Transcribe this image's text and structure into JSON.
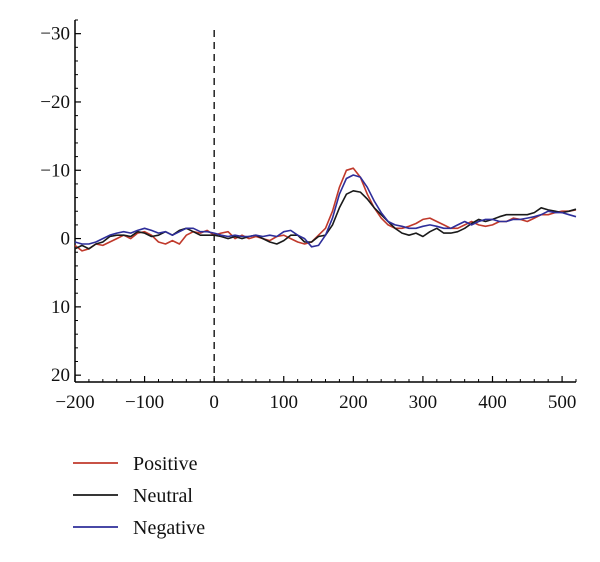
{
  "chart_data": {
    "type": "line",
    "title": "",
    "xlabel": "",
    "ylabel": "",
    "xlim": [
      -200,
      520
    ],
    "ylim": [
      -32,
      21
    ],
    "y_inverted": true,
    "x_ticks": [
      -200,
      -100,
      0,
      100,
      200,
      300,
      400,
      500
    ],
    "x_tick_labels": [
      "−200",
      "−100",
      "0",
      "100",
      "200",
      "300",
      "400",
      "500"
    ],
    "y_ticks": [
      -30,
      -20,
      -10,
      0,
      10,
      20
    ],
    "y_tick_labels": [
      "−30",
      "−20",
      "−10",
      "0",
      "10",
      "20"
    ],
    "event_marker_x": 0,
    "grid": false,
    "legend_position": "bottom-left",
    "series": [
      {
        "name": "Positive",
        "color": "#c0392b",
        "x": [
          -200,
          -190,
          -180,
          -170,
          -160,
          -150,
          -140,
          -130,
          -120,
          -110,
          -100,
          -90,
          -80,
          -70,
          -60,
          -50,
          -40,
          -30,
          -20,
          -10,
          0,
          10,
          20,
          30,
          40,
          50,
          60,
          70,
          80,
          90,
          100,
          110,
          120,
          130,
          140,
          150,
          160,
          170,
          180,
          190,
          200,
          210,
          220,
          230,
          240,
          250,
          260,
          270,
          280,
          290,
          300,
          310,
          320,
          330,
          340,
          350,
          360,
          370,
          380,
          390,
          400,
          410,
          420,
          430,
          440,
          450,
          460,
          470,
          480,
          490,
          500,
          510,
          520
        ],
        "y": [
          1.0,
          1.8,
          1.5,
          0.8,
          1.0,
          0.5,
          0.0,
          -0.5,
          0.0,
          -0.8,
          -1.0,
          -0.5,
          0.5,
          0.8,
          0.3,
          0.8,
          -0.5,
          -1.0,
          -0.8,
          -1.2,
          -0.5,
          -0.8,
          -1.0,
          0.0,
          -0.5,
          0.0,
          -0.3,
          0.0,
          0.3,
          -0.3,
          -0.5,
          0.0,
          0.5,
          0.8,
          0.5,
          -0.5,
          -1.5,
          -4.0,
          -7.5,
          -10.0,
          -10.3,
          -9.0,
          -6.5,
          -4.5,
          -3.0,
          -2.0,
          -1.5,
          -1.5,
          -1.8,
          -2.2,
          -2.8,
          -3.0,
          -2.5,
          -2.0,
          -1.5,
          -1.5,
          -2.0,
          -2.5,
          -2.0,
          -1.8,
          -2.0,
          -2.5,
          -2.5,
          -3.0,
          -2.8,
          -2.5,
          -3.0,
          -3.5,
          -3.5,
          -3.8,
          -4.0,
          -4.0,
          -4.2
        ]
      },
      {
        "name": "Neutral",
        "color": "#1a1a1a",
        "x": [
          -200,
          -190,
          -180,
          -170,
          -160,
          -150,
          -140,
          -130,
          -120,
          -110,
          -100,
          -90,
          -80,
          -70,
          -60,
          -50,
          -40,
          -30,
          -20,
          -10,
          0,
          10,
          20,
          30,
          40,
          50,
          60,
          70,
          80,
          90,
          100,
          110,
          120,
          130,
          140,
          150,
          160,
          170,
          180,
          190,
          200,
          210,
          220,
          230,
          240,
          250,
          260,
          270,
          280,
          290,
          300,
          310,
          320,
          330,
          340,
          350,
          360,
          370,
          380,
          390,
          400,
          410,
          420,
          430,
          440,
          450,
          460,
          470,
          480,
          490,
          500,
          510,
          520
        ],
        "y": [
          1.5,
          1.0,
          1.5,
          0.8,
          0.5,
          -0.3,
          -0.5,
          -0.5,
          -0.3,
          -1.0,
          -0.8,
          -0.3,
          -0.5,
          -1.0,
          -0.5,
          -1.2,
          -1.5,
          -1.0,
          -0.5,
          -0.5,
          -0.5,
          -0.3,
          0.0,
          -0.3,
          0.0,
          -0.3,
          -0.5,
          0.0,
          0.5,
          0.8,
          0.3,
          -0.5,
          -0.5,
          0.5,
          0.5,
          -0.3,
          -0.5,
          -2.0,
          -4.5,
          -6.5,
          -7.0,
          -6.8,
          -5.8,
          -4.5,
          -3.5,
          -2.5,
          -1.5,
          -0.8,
          -0.5,
          -0.8,
          -0.3,
          -1.0,
          -1.5,
          -0.8,
          -0.8,
          -1.0,
          -1.5,
          -2.2,
          -2.8,
          -2.5,
          -2.8,
          -3.2,
          -3.5,
          -3.5,
          -3.5,
          -3.5,
          -3.8,
          -4.5,
          -4.2,
          -4.0,
          -3.8,
          -4.0,
          -4.3
        ]
      },
      {
        "name": "Negative",
        "color": "#2e2e9a",
        "x": [
          -200,
          -190,
          -180,
          -170,
          -160,
          -150,
          -140,
          -130,
          -120,
          -110,
          -100,
          -90,
          -80,
          -70,
          -60,
          -50,
          -40,
          -30,
          -20,
          -10,
          0,
          10,
          20,
          30,
          40,
          50,
          60,
          70,
          80,
          90,
          100,
          110,
          120,
          130,
          140,
          150,
          160,
          170,
          180,
          190,
          200,
          210,
          220,
          230,
          240,
          250,
          260,
          270,
          280,
          290,
          300,
          310,
          320,
          330,
          340,
          350,
          360,
          370,
          380,
          390,
          400,
          410,
          420,
          430,
          440,
          450,
          460,
          470,
          480,
          490,
          500,
          510,
          520
        ],
        "y": [
          0.5,
          0.8,
          0.8,
          0.5,
          0.0,
          -0.5,
          -0.8,
          -1.0,
          -0.8,
          -1.2,
          -1.5,
          -1.2,
          -0.8,
          -1.0,
          -0.5,
          -1.0,
          -1.5,
          -1.5,
          -1.0,
          -1.0,
          -0.8,
          -0.5,
          -0.3,
          -0.5,
          -0.3,
          -0.3,
          -0.5,
          -0.3,
          -0.5,
          -0.3,
          -1.0,
          -1.2,
          -0.5,
          0.0,
          1.2,
          1.0,
          -0.5,
          -3.0,
          -6.5,
          -8.8,
          -9.3,
          -9.0,
          -7.5,
          -5.5,
          -3.8,
          -2.5,
          -2.0,
          -1.8,
          -1.5,
          -1.5,
          -1.8,
          -2.0,
          -1.8,
          -1.5,
          -1.5,
          -2.0,
          -2.5,
          -2.0,
          -2.5,
          -2.8,
          -2.8,
          -2.5,
          -2.5,
          -2.8,
          -2.8,
          -3.0,
          -3.2,
          -3.5,
          -4.0,
          -3.8,
          -3.8,
          -3.5,
          -3.2
        ]
      }
    ]
  }
}
